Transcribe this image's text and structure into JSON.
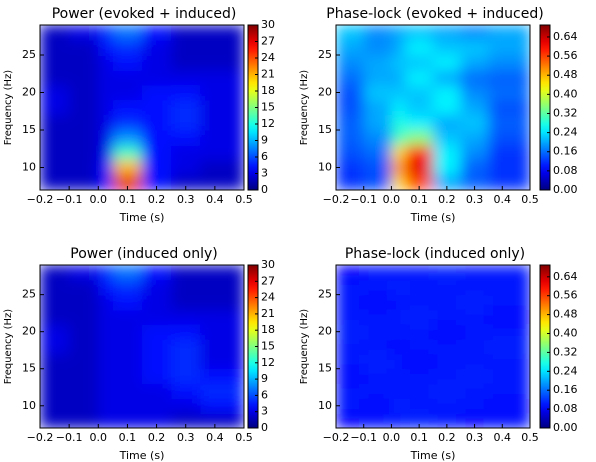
{
  "chart_data": [
    {
      "type": "heatmap",
      "title": "Power (evoked + induced)",
      "xlabel": "Time (s)",
      "ylabel": "Frequency (Hz)",
      "colormap": "jet",
      "xlim": [
        -0.2,
        0.5
      ],
      "xticks": [
        {
          "value": -0.2,
          "label": "−0.2"
        },
        {
          "value": -0.1,
          "label": "−0.1"
        },
        {
          "value": 0,
          "label": "0.0"
        },
        0.1,
        0.2,
        0.3,
        0.4,
        0.5
      ],
      "ylim": [
        7,
        29
      ],
      "yticks": [
        10,
        15,
        20,
        25
      ],
      "xbins": [
        -0.2,
        -0.1,
        0,
        0.05,
        0.15,
        0.25,
        0.35,
        0.5
      ],
      "ybins": [
        7,
        9,
        11,
        13,
        15,
        17,
        19,
        21,
        23,
        25,
        27,
        29
      ],
      "z": [
        [
          2,
          2,
          4,
          27,
          4,
          2,
          2
        ],
        [
          2,
          2,
          4,
          21,
          4,
          3,
          2
        ],
        [
          2,
          2,
          3,
          13,
          4,
          3,
          3
        ],
        [
          2,
          2,
          3,
          8,
          4,
          4,
          3
        ],
        [
          2,
          2,
          3,
          5,
          4,
          5,
          3
        ],
        [
          3,
          2,
          3,
          4,
          4,
          5,
          3
        ],
        [
          3,
          2,
          3,
          3,
          4,
          4,
          3
        ],
        [
          2,
          2,
          3,
          3,
          3,
          3,
          3
        ],
        [
          2,
          2,
          3,
          4,
          3,
          2,
          2
        ],
        [
          2,
          2,
          4,
          5,
          3,
          2,
          2
        ],
        [
          2,
          3,
          5,
          7,
          4,
          2,
          2
        ]
      ],
      "zlim": [
        0,
        30
      ],
      "zticks": [
        0,
        3,
        6,
        9,
        12,
        15,
        18,
        21,
        24,
        27,
        30
      ]
    },
    {
      "type": "heatmap",
      "title": "Phase-lock (evoked + induced)",
      "xlabel": "Time (s)",
      "ylabel": "Frequency (Hz)",
      "colormap": "jet",
      "xlim": [
        -0.2,
        0.5
      ],
      "xticks": [
        {
          "value": -0.2,
          "label": "−0.2"
        },
        {
          "value": -0.1,
          "label": "−0.1"
        },
        {
          "value": 0,
          "label": "0.0"
        },
        0.1,
        0.2,
        0.3,
        0.4,
        0.5
      ],
      "ylim": [
        7,
        29
      ],
      "yticks": [
        10,
        15,
        20,
        25
      ],
      "xbins": [
        -0.2,
        -0.1,
        0,
        0.05,
        0.15,
        0.25,
        0.35,
        0.5
      ],
      "ybins": [
        7,
        9,
        11,
        13,
        15,
        17,
        19,
        21,
        23,
        25,
        27,
        29
      ],
      "z": [
        [
          0.12,
          0.14,
          0.45,
          0.55,
          0.2,
          0.15,
          0.12
        ],
        [
          0.12,
          0.14,
          0.5,
          0.62,
          0.25,
          0.15,
          0.12
        ],
        [
          0.14,
          0.16,
          0.45,
          0.58,
          0.25,
          0.18,
          0.12
        ],
        [
          0.15,
          0.18,
          0.3,
          0.35,
          0.22,
          0.2,
          0.14
        ],
        [
          0.15,
          0.2,
          0.28,
          0.25,
          0.2,
          0.22,
          0.15
        ],
        [
          0.14,
          0.2,
          0.25,
          0.22,
          0.25,
          0.2,
          0.14
        ],
        [
          0.14,
          0.22,
          0.22,
          0.22,
          0.25,
          0.18,
          0.16
        ],
        [
          0.16,
          0.2,
          0.2,
          0.25,
          0.2,
          0.16,
          0.15
        ],
        [
          0.18,
          0.2,
          0.22,
          0.22,
          0.25,
          0.2,
          0.18
        ],
        [
          0.2,
          0.18,
          0.2,
          0.25,
          0.22,
          0.22,
          0.2
        ],
        [
          0.22,
          0.18,
          0.2,
          0.22,
          0.2,
          0.18,
          0.2
        ]
      ],
      "zlim": [
        0,
        0.69
      ],
      "zticks": [
        {
          "value": 0,
          "label": "0.00"
        },
        {
          "value": 0.08,
          "label": "0.08"
        },
        {
          "value": 0.16,
          "label": "0.16"
        },
        {
          "value": 0.24,
          "label": "0.24"
        },
        {
          "value": 0.32,
          "label": "0.32"
        },
        {
          "value": 0.4,
          "label": "0.40"
        },
        {
          "value": 0.48,
          "label": "0.48"
        },
        {
          "value": 0.56,
          "label": "0.56"
        },
        {
          "value": 0.64,
          "label": "0.64"
        }
      ]
    },
    {
      "type": "heatmap",
      "title": "Power (induced only)",
      "xlabel": "Time (s)",
      "ylabel": "Frequency (Hz)",
      "colormap": "jet",
      "xlim": [
        -0.2,
        0.5
      ],
      "xticks": [
        {
          "value": -0.2,
          "label": "−0.2"
        },
        {
          "value": -0.1,
          "label": "−0.1"
        },
        {
          "value": 0,
          "label": "0.0"
        },
        0.1,
        0.2,
        0.3,
        0.4,
        0.5
      ],
      "ylim": [
        7,
        29
      ],
      "yticks": [
        10,
        15,
        20,
        25
      ],
      "xbins": [
        -0.2,
        -0.1,
        0,
        0.05,
        0.15,
        0.25,
        0.35,
        0.5
      ],
      "ybins": [
        7,
        9,
        11,
        13,
        15,
        17,
        19,
        21,
        23,
        25,
        27,
        29
      ],
      "z": [
        [
          2,
          2,
          3,
          3,
          3,
          2,
          2
        ],
        [
          2,
          2,
          3,
          3,
          3,
          3,
          4
        ],
        [
          2,
          2,
          3,
          3,
          3,
          4,
          5
        ],
        [
          2,
          2,
          3,
          3,
          4,
          5,
          4
        ],
        [
          2,
          2,
          3,
          3,
          4,
          5,
          3
        ],
        [
          3,
          2,
          3,
          3,
          4,
          5,
          3
        ],
        [
          3,
          2,
          3,
          3,
          4,
          4,
          3
        ],
        [
          2,
          2,
          3,
          3,
          3,
          3,
          3
        ],
        [
          2,
          2,
          3,
          4,
          3,
          2,
          2
        ],
        [
          2,
          2,
          4,
          5,
          3,
          2,
          2
        ],
        [
          2,
          3,
          5,
          7,
          4,
          2,
          2
        ]
      ],
      "zlim": [
        0,
        30
      ],
      "zticks": [
        0,
        3,
        6,
        9,
        12,
        15,
        18,
        21,
        24,
        27,
        30
      ]
    },
    {
      "type": "heatmap",
      "title": "Phase-lock (induced only)",
      "xlabel": "Time (s)",
      "ylabel": "Frequency (Hz)",
      "colormap": "jet",
      "xlim": [
        -0.2,
        0.5
      ],
      "xticks": [
        {
          "value": -0.2,
          "label": "−0.2"
        },
        {
          "value": -0.1,
          "label": "−0.1"
        },
        {
          "value": 0,
          "label": "0.0"
        },
        0.1,
        0.2,
        0.3,
        0.4,
        0.5
      ],
      "ylim": [
        7,
        29
      ],
      "yticks": [
        10,
        15,
        20,
        25
      ],
      "xbins": [
        -0.2,
        -0.1,
        0,
        0.05,
        0.15,
        0.25,
        0.35,
        0.5
      ],
      "ybins": [
        7,
        9,
        11,
        13,
        15,
        17,
        19,
        21,
        23,
        25,
        27,
        29
      ],
      "z": [
        [
          0.09,
          0.1,
          0.1,
          0.11,
          0.1,
          0.09,
          0.1
        ],
        [
          0.1,
          0.09,
          0.11,
          0.1,
          0.1,
          0.1,
          0.09
        ],
        [
          0.1,
          0.1,
          0.1,
          0.1,
          0.11,
          0.1,
          0.1
        ],
        [
          0.09,
          0.1,
          0.1,
          0.1,
          0.1,
          0.11,
          0.1
        ],
        [
          0.1,
          0.11,
          0.1,
          0.09,
          0.1,
          0.1,
          0.1
        ],
        [
          0.1,
          0.1,
          0.09,
          0.1,
          0.1,
          0.1,
          0.11
        ],
        [
          0.11,
          0.1,
          0.1,
          0.1,
          0.09,
          0.1,
          0.1
        ],
        [
          0.1,
          0.1,
          0.1,
          0.11,
          0.1,
          0.1,
          0.09
        ],
        [
          0.1,
          0.09,
          0.1,
          0.1,
          0.1,
          0.11,
          0.1
        ],
        [
          0.1,
          0.1,
          0.11,
          0.1,
          0.1,
          0.1,
          0.1
        ],
        [
          0.09,
          0.1,
          0.1,
          0.1,
          0.11,
          0.1,
          0.1
        ]
      ],
      "zlim": [
        0,
        0.69
      ],
      "zticks": [
        {
          "value": 0,
          "label": "0.00"
        },
        {
          "value": 0.08,
          "label": "0.08"
        },
        {
          "value": 0.16,
          "label": "0.16"
        },
        {
          "value": 0.24,
          "label": "0.24"
        },
        {
          "value": 0.32,
          "label": "0.32"
        },
        {
          "value": 0.4,
          "label": "0.40"
        },
        {
          "value": 0.48,
          "label": "0.48"
        },
        {
          "value": 0.56,
          "label": "0.56"
        },
        {
          "value": 0.64,
          "label": "0.64"
        }
      ]
    }
  ]
}
